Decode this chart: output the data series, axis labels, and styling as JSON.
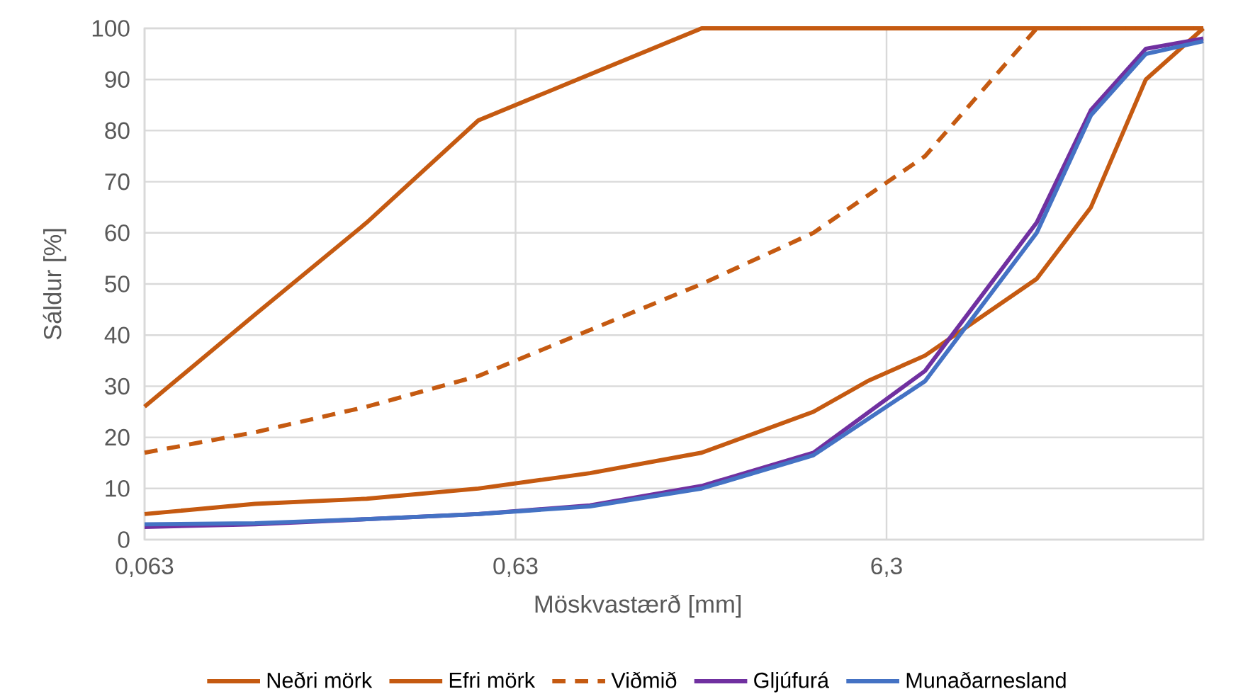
{
  "chart_data": {
    "type": "line",
    "xlabel": "Möskvastærð [mm]",
    "ylabel": "Sáldur [%]",
    "log": "x",
    "xlim": [
      0.063,
      45
    ],
    "ylim": [
      0,
      100
    ],
    "xticks": [
      {
        "value": 0.063,
        "label": "0,063"
      },
      {
        "value": 0.63,
        "label": "0,63"
      },
      {
        "value": 6.3,
        "label": "6,3"
      }
    ],
    "yticks": [
      0,
      10,
      20,
      30,
      40,
      50,
      60,
      70,
      80,
      90,
      100
    ],
    "grid": true,
    "legend": "bottom",
    "series": [
      {
        "name": "Neðri mörk",
        "color": "#c55a11",
        "x": [
          0.063,
          0.125,
          0.25,
          0.5,
          1,
          2,
          4,
          5.6,
          8,
          16,
          22.4,
          31.5,
          45
        ],
        "values": [
          5,
          7,
          8,
          10,
          13,
          17,
          25,
          31,
          36,
          51,
          65,
          90,
          100
        ]
      },
      {
        "name": "Efri mörk",
        "color": "#c55a11",
        "x": [
          0.063,
          0.125,
          0.25,
          0.5,
          1,
          2,
          4,
          8,
          16,
          22.4,
          31.5,
          45
        ],
        "values": [
          26,
          44,
          62,
          82,
          91,
          100,
          100,
          100,
          100,
          100,
          100,
          100
        ]
      },
      {
        "name": "Viðmið",
        "color": "#c55a11",
        "line_style": "dashed",
        "x": [
          0.063,
          0.125,
          0.25,
          0.5,
          1,
          2,
          4,
          8,
          16,
          22.4,
          31.5,
          45
        ],
        "values": [
          17,
          21,
          26,
          32,
          41,
          50,
          60,
          75,
          100,
          100,
          100,
          100
        ]
      },
      {
        "name": "Gljúfurá",
        "color": "#7030a0",
        "x": [
          0.063,
          0.125,
          0.25,
          0.5,
          1,
          2,
          4,
          8,
          16,
          22.4,
          31.5,
          45
        ],
        "values": [
          2.5,
          3,
          4,
          5,
          6.7,
          10.5,
          17,
          33,
          62,
          84,
          96,
          98
        ]
      },
      {
        "name": "Munaðarnesland",
        "color": "#4472c4",
        "x": [
          0.063,
          0.125,
          0.25,
          0.5,
          1,
          2,
          4,
          8,
          16,
          22.4,
          31.5,
          45
        ],
        "values": [
          3,
          3.2,
          4,
          5,
          6.5,
          10,
          16.5,
          31,
          60,
          83,
          95,
          97.5
        ]
      }
    ]
  }
}
